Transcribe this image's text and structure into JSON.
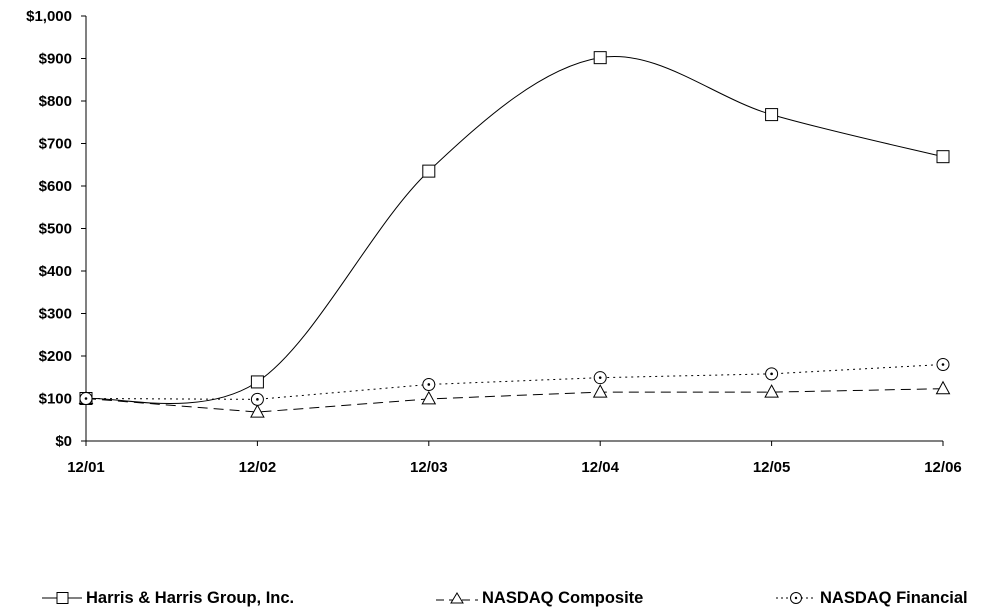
{
  "chart_data": {
    "type": "line",
    "title": "",
    "xlabel": "",
    "ylabel": "",
    "categories": [
      "12/01",
      "12/02",
      "12/03",
      "12/04",
      "12/05",
      "12/06"
    ],
    "y_ticks": [
      "$0",
      "$100",
      "$200",
      "$300",
      "$400",
      "$500",
      "$600",
      "$700",
      "$800",
      "$900",
      "$1,000"
    ],
    "ylim": [
      0,
      1000
    ],
    "grid": false,
    "legend_position": "bottom",
    "series": [
      {
        "name": "Harris & Harris Group, Inc.",
        "values": [
          100,
          139,
          635,
          902,
          768,
          669
        ],
        "marker": "square",
        "line_style": "solid",
        "smooth": true,
        "color": "#000000"
      },
      {
        "name": "NASDAQ Composite",
        "values": [
          100,
          68,
          99,
          115,
          115,
          123
        ],
        "marker": "triangle",
        "line_style": "dashed",
        "smooth": false,
        "color": "#000000"
      },
      {
        "name": "NASDAQ Financial",
        "values": [
          100,
          98,
          133,
          149,
          158,
          180
        ],
        "marker": "circle",
        "line_style": "dotted",
        "smooth": false,
        "color": "#000000"
      }
    ]
  }
}
